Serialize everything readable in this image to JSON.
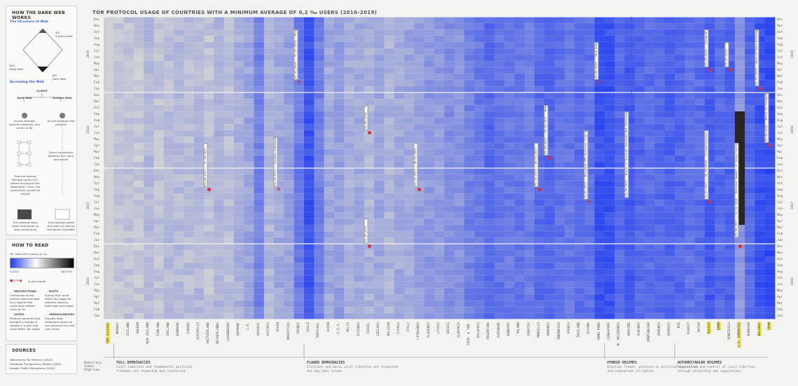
{
  "sidebar": {
    "how_title": "HOW THE DARK WEB WORKS",
    "structure_title": "The structure of Web",
    "surface_label": "4%\nSurface Web",
    "deep_label": "90%\nDeep Web",
    "dark_label": "6%\nDark Web",
    "accessing_title": "Accessing the Web",
    "client_label": "CLIENT",
    "dark_web": "Dark Web",
    "surface_web": "Surface Web",
    "dark_access": "Access through specific protocols, one of this is Tor",
    "surface_access": "Access through http protocol",
    "direct": "Direct connection between the client and server",
    "shaced": "Files are shaced through various PC, before arriving at the destination. Thus, the connection cannot be traced",
    "dark_method": "This method helps client and server to stay anonymous",
    "surface_method": "This method makes the client as well as the server traceable",
    "read_title": "HOW TO READ",
    "scale_title": "Tor Users Per Country in ‰",
    "scale_min": "0,0025",
    "scale_max": "46,0733",
    "symbols_label": "≥ one month",
    "restrictions_title": "RESTRICTIONS",
    "restrictions_text": "Censorship of the surface web operated by a regime that could have shifted users to Tor",
    "riots_title": "RIOTS",
    "riots_text": "Events that could affect Tor usage for different reasons, both legal and illegal",
    "votes_title": "VOTES",
    "votes_text": "Political moments that brought a change in society in a way that could affect Tor usage",
    "irregularities_title": "IRREGULARITIES",
    "irregularities_text": "Possible data distortions which do not represent the real user count",
    "sources_title": "SOURCES",
    "sources": [
      "Welcome to Tor Metrics! (2020)",
      "Facebook Transparency Report (2020)",
      "Google Traffic Disruptions (2020)"
    ]
  },
  "chart_data": {
    "type": "heatmap",
    "title": "TOR PROTOCOL USAGE OF COUNTRIES WITH A MINIMUM AVERAGE OF 0,2 ‰ USERS (2016–2019)",
    "years": [
      "2016",
      "2017",
      "2018",
      "2019"
    ],
    "months": [
      "Jan",
      "Feb",
      "Mar",
      "Apr",
      "May",
      "Jun",
      "Jul",
      "Aug",
      "Sep",
      "Oct",
      "Nov",
      "Dec"
    ],
    "colorscale": {
      "low": "#d6d6d3",
      "high": "#1f3cf2",
      "min": "0,0025",
      "max": "46,0733"
    },
    "countries": [
      "TOR ILLEGAL",
      "NORWAY",
      "ICELAND",
      "SWEDEN",
      "NEW ZEALAND",
      "FINLAND",
      "IRELAND",
      "DENMARK",
      "CANADA",
      "AUSTRALIA",
      "SWITZERLAND",
      "NETHERLANDS",
      "LUXEMBOURG",
      "GERMANY",
      "U.K.",
      "URUGUAY",
      "AUSTRIA",
      "SPAIN",
      "MAURITIUS",
      "FRANCE",
      "CHILE",
      "PORTUGAL",
      "JAPAN",
      "U.S.A.",
      "MALTA",
      "ESTONIA",
      "ISRAEL",
      "CZECHIA",
      "BELGIUM",
      "CYPRUS",
      "ITALY",
      "LITHUANIA",
      "SLOVENIA",
      "LATVIA",
      "GREECE",
      "SLOVAKIA",
      "TRIN. & TOB.",
      "BULGARIA",
      "ARGENTINA",
      "SURINAME",
      "HUNGARY",
      "POLAND",
      "CROATIA",
      "MONGOLIA",
      "ROMANIA",
      "INDONESIA",
      "SERBIA",
      "THAILAND",
      "GUYANA",
      "HONG KONG",
      "SINGAPORE",
      "N. MACEDONIA",
      "UKRAINE",
      "ALBANIA",
      "MONTENEGRO",
      "ARMENIA",
      "GEORGIA",
      "BIH",
      "KUWAIT",
      "QATAR",
      "RUSSIA",
      "OMAN",
      "VENEZUELA",
      "U.A. EMIRATES",
      "BAHRAIN",
      "BELARUS",
      "IRAN"
    ],
    "highlighted": [
      "TOR ILLEGAL",
      "RUSSIA",
      "OMAN",
      "U.A. EMIRATES",
      "BELARUS",
      "IRAN"
    ],
    "intensity": [
      0,
      0.1,
      0.12,
      0.1,
      0.18,
      0.12,
      0.16,
      0.18,
      0.15,
      0.2,
      0.12,
      0.22,
      0.15,
      0.25,
      0.32,
      0.55,
      0.2,
      0.3,
      0.35,
      0.6,
      0.85,
      0.55,
      0.3,
      0.35,
      0.25,
      0.28,
      0.22,
      0.3,
      0.22,
      0.28,
      0.3,
      0.35,
      0.4,
      0.38,
      0.45,
      0.42,
      0.55,
      0.6,
      0.7,
      0.62,
      0.6,
      0.62,
      0.58,
      0.7,
      0.72,
      0.65,
      0.62,
      0.68,
      0.65,
      0.85,
      0.85,
      0.7,
      0.8,
      0.72,
      0.68,
      0.7,
      0.75,
      0.72,
      0.65,
      0.68,
      0.8,
      0.7,
      0.75,
      0.4,
      0.72,
      0.85,
      0.9
    ],
    "categories": [
      {
        "title": "FULL DEMOCRACIES",
        "desc": "Civil liberties and fundamental political freedoms are respected and reinforced."
      },
      {
        "title": "FLAWED DEMOCRACIES",
        "desc": "Elections and basic civil liberties are respected but may have issues."
      },
      {
        "title": "HYBRID REGIMES",
        "desc": "Election frauds, pressure on political opposition and widespread corruption."
      },
      {
        "title": "AUTHORITARIAN REGIMES",
        "desc": "Restriction and control of civil liberties through censorship and suppression"
      }
    ],
    "axis_hint": "Democracy Index High-Low",
    "annotations": [
      "01.10.2017\nCatalan independence Referendum",
      "03.09.2017 – 07.09.2017\nMeeting Block",
      "22.11.2017 – 28.12.2017\nMeeting Block",
      "01.07.2019 – 31.07.2019\nRise of 'Vilde' Cover Movement",
      "20.06.2018\nGrowth Engine",
      "03.10.2016\n'Operation Bill'",
      "01.10.2017 – 05.11.2017\nMeeting Block",
      "01.09.2017 – 03.10.2017\nMeeting Block",
      "11.07.2017\nBlocking VPN Services from App Stores",
      "12.06.2019\nHong Kong Protests",
      "01.09.2017\nBlock of Russian Operated Web Services",
      "01.05.2019\nTelegram Restrictions",
      "22.07.2017 – 05.05.2018\nIllegalisation of VPN Services",
      "03.09.2017 – 12.11.2018\nRelevant Number of Skype Users",
      "01.07.2019\nTelecom Sanctions",
      "01.03.2019\nWave of Anti-Government Protests",
      "03.08.2018\nBlock of Telegram Messenger"
    ]
  }
}
